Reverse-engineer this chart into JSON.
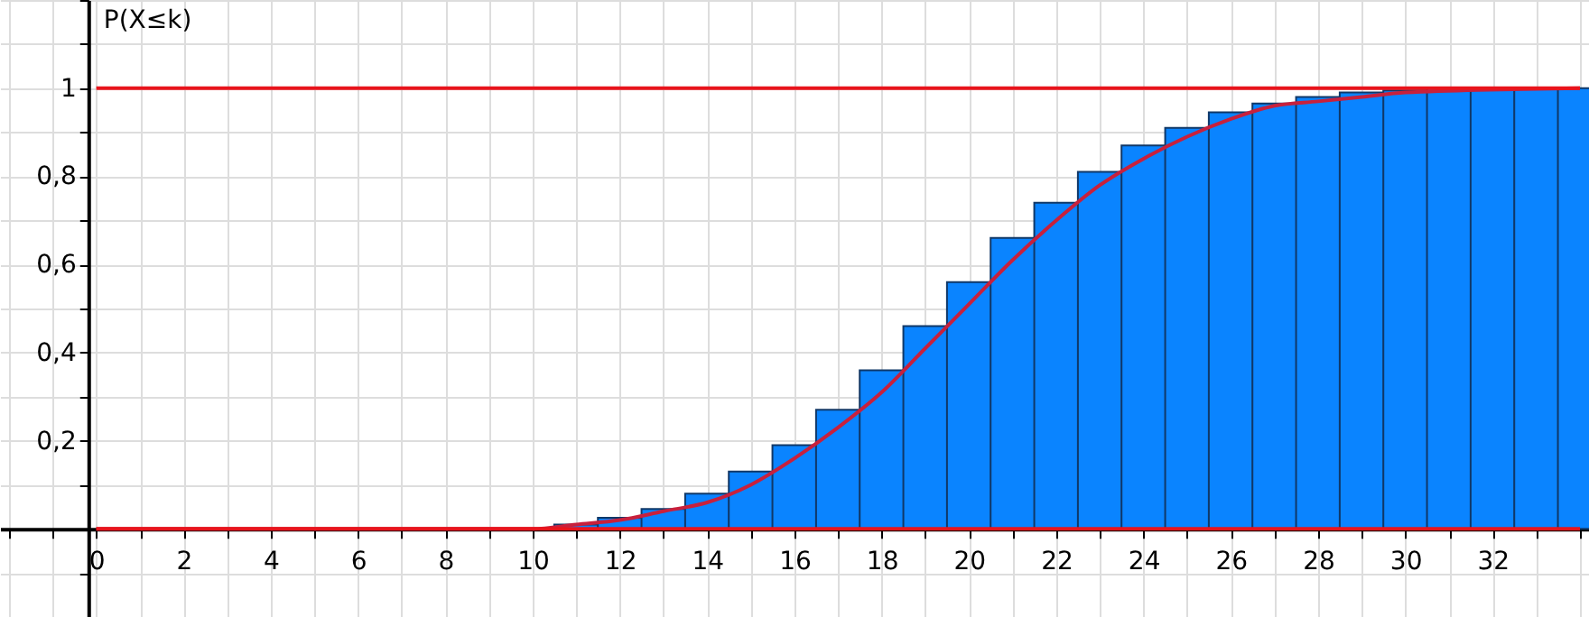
{
  "chart_data": {
    "type": "bar",
    "ylabel": "P(X≤k)",
    "xlim": [
      -2,
      34
    ],
    "ylim": [
      -0.2,
      1.2
    ],
    "xticks": [
      {
        "value": -2,
        "label": null
      },
      {
        "value": -1,
        "label": null
      },
      0,
      {
        "value": 1,
        "label": null
      },
      2,
      {
        "value": 3,
        "label": null
      },
      4,
      {
        "value": 5,
        "label": null
      },
      6,
      {
        "value": 7,
        "label": null
      },
      8,
      {
        "value": 9,
        "label": null
      },
      10,
      {
        "value": 11,
        "label": null
      },
      12,
      {
        "value": 13,
        "label": null
      },
      14,
      {
        "value": 15,
        "label": null
      },
      16,
      {
        "value": 17,
        "label": null
      },
      18,
      {
        "value": 19,
        "label": null
      },
      20,
      {
        "value": 21,
        "label": null
      },
      22,
      {
        "value": 23,
        "label": null
      },
      24,
      {
        "value": 25,
        "label": null
      },
      26,
      {
        "value": 27,
        "label": null
      },
      28,
      {
        "value": 29,
        "label": null
      },
      30,
      {
        "value": 31,
        "label": null
      },
      32,
      {
        "value": 33,
        "label": null
      },
      {
        "value": 34,
        "label": null
      }
    ],
    "yticks": [
      {
        "value": -0.2,
        "label": null
      },
      {
        "value": -0.1,
        "label": null
      },
      {
        "value": 0.1,
        "label": null
      },
      {
        "value": 0.2,
        "label": "0,2"
      },
      {
        "value": 0.3,
        "label": null
      },
      {
        "value": 0.4,
        "label": "0,4"
      },
      {
        "value": 0.5,
        "label": null
      },
      {
        "value": 0.6,
        "label": "0,6"
      },
      {
        "value": 0.7,
        "label": null
      },
      {
        "value": 0.8,
        "label": "0,8"
      },
      {
        "value": 0.9,
        "label": null
      },
      1,
      {
        "value": 1.1,
        "label": null
      },
      {
        "value": 1.2,
        "label": null
      }
    ],
    "grid": true,
    "series": [
      {
        "color": "#0a84ff",
        "x": [
          0,
          1,
          2,
          3,
          4,
          5,
          6,
          7,
          8,
          9,
          10,
          11,
          12,
          13,
          14,
          15,
          16,
          17,
          18,
          19,
          20,
          21,
          22,
          23,
          24,
          25,
          26,
          27,
          28,
          29,
          30,
          31,
          32,
          33,
          34
        ],
        "values": [
          0,
          0,
          0,
          0,
          0,
          0,
          0,
          0,
          0,
          0,
          0,
          0.01,
          0.025,
          0.045,
          0.08,
          0.13,
          0.19,
          0.27,
          0.36,
          0.46,
          0.56,
          0.66,
          0.74,
          0.81,
          0.87,
          0.91,
          0.945,
          0.965,
          0.98,
          0.99,
          0.995,
          1,
          1,
          1,
          1
        ]
      },
      {
        "type": "line",
        "color": "#c8203c",
        "x": [
          0,
          10,
          11,
          12,
          13,
          14,
          15,
          16,
          17,
          18,
          19,
          20,
          21,
          22,
          23,
          24,
          25,
          26,
          27,
          28,
          29,
          30,
          34
        ],
        "values": [
          0,
          0,
          0.01,
          0.02,
          0.04,
          0.06,
          0.1,
          0.16,
          0.23,
          0.31,
          0.41,
          0.51,
          0.61,
          0.7,
          0.78,
          0.84,
          0.89,
          0.93,
          0.96,
          0.97,
          0.98,
          0.99,
          1
        ]
      }
    ],
    "ref_lines": [
      {
        "axis": "y",
        "value": 0,
        "color": "#e8141c"
      },
      {
        "axis": "y",
        "value": 1,
        "color": "#e8141c"
      }
    ]
  }
}
